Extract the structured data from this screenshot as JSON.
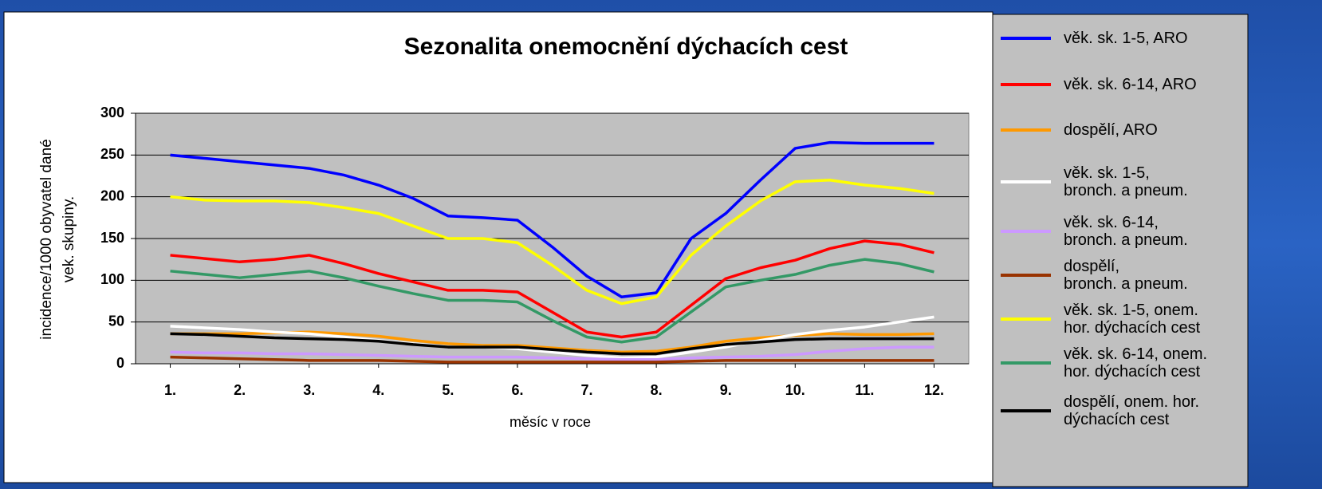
{
  "chart_data": {
    "type": "line",
    "title": "Sezonalita onemocnění dýchacích cest",
    "x_label": "měsíc v roce",
    "y_label": "incidence/1000 obyvatel dané\nvek. skupiny.",
    "x": [
      1,
      1.5,
      2,
      2.5,
      3,
      3.5,
      4,
      4.5,
      5,
      5.5,
      6,
      6.5,
      7,
      7.5,
      8,
      8.5,
      9,
      9.5,
      10,
      10.5,
      11,
      11.5,
      12
    ],
    "xlim": [
      0.5,
      12.5
    ],
    "xticks": [
      {
        "value": 1,
        "label": "1."
      },
      {
        "value": 2,
        "label": "2."
      },
      {
        "value": 3,
        "label": "3."
      },
      {
        "value": 4,
        "label": "4."
      },
      {
        "value": 5,
        "label": "5."
      },
      {
        "value": 6,
        "label": "6."
      },
      {
        "value": 7,
        "label": "7."
      },
      {
        "value": 8,
        "label": "8."
      },
      {
        "value": 9,
        "label": "9."
      },
      {
        "value": 10,
        "label": "10."
      },
      {
        "value": 11,
        "label": "11."
      },
      {
        "value": 12,
        "label": "12."
      }
    ],
    "ylim": [
      0,
      300
    ],
    "yticks": [
      0,
      50,
      100,
      150,
      200,
      250,
      300
    ],
    "grid": true,
    "legend": "right",
    "series": [
      {
        "name": "věk. sk. 1-5, ARO",
        "color": "#0000ff",
        "values": [
          250,
          246,
          242,
          238,
          234,
          226,
          214,
          198,
          177,
          175,
          172,
          140,
          105,
          80,
          85,
          150,
          180,
          220,
          258,
          265,
          264,
          264,
          264
        ]
      },
      {
        "name": "věk. sk. 6-14, ARO",
        "color": "#ff0000",
        "values": [
          130,
          126,
          122,
          125,
          130,
          120,
          108,
          98,
          88,
          88,
          86,
          62,
          38,
          32,
          38,
          70,
          102,
          115,
          124,
          138,
          147,
          143,
          133
        ]
      },
      {
        "name": "dospělí, ARO",
        "color": "#ff9900",
        "values": [
          36,
          36,
          36,
          37,
          38,
          36,
          33,
          28,
          24,
          22,
          22,
          19,
          16,
          14,
          15,
          20,
          27,
          31,
          34,
          36,
          35,
          35,
          36
        ]
      },
      {
        "name": "věk. sk. 1-5,\nbronch. a pneum.",
        "color": "#ffffff",
        "values": [
          45,
          43,
          41,
          38,
          36,
          32,
          28,
          24,
          20,
          20,
          18,
          14,
          10,
          7,
          8,
          14,
          20,
          28,
          35,
          40,
          44,
          50,
          56
        ]
      },
      {
        "name": "věk. sk. 6-14,\nbronch. a pneum.",
        "color": "#cc99ff",
        "values": [
          14,
          13,
          13,
          12,
          12,
          11,
          10,
          9,
          8,
          8,
          8,
          7,
          6,
          5,
          5,
          7,
          8,
          9,
          11,
          15,
          18,
          20,
          20
        ]
      },
      {
        "name": "dospělí,\nbronch. a pneum.",
        "color": "#993300",
        "values": [
          8,
          7,
          6,
          5,
          4,
          4,
          4,
          3,
          2,
          2,
          2,
          2,
          2,
          2,
          2,
          3,
          4,
          4,
          4,
          4,
          4,
          4,
          4
        ]
      },
      {
        "name": "věk. sk. 1-5,  onem.\nhor. dýchacích cest",
        "color": "#ffff00",
        "values": [
          200,
          196,
          195,
          195,
          193,
          187,
          180,
          165,
          150,
          150,
          145,
          118,
          88,
          72,
          80,
          130,
          165,
          195,
          218,
          220,
          214,
          210,
          204
        ]
      },
      {
        "name": "věk. sk. 6-14, onem.\nhor. dýchacích cest",
        "color": "#339966",
        "values": [
          111,
          107,
          103,
          107,
          111,
          103,
          93,
          84,
          76,
          76,
          74,
          52,
          32,
          26,
          32,
          62,
          92,
          100,
          107,
          118,
          125,
          120,
          110
        ]
      },
      {
        "name": "dospělí, onem. hor.\ndýchacích cest",
        "color": "#000000",
        "values": [
          36,
          35,
          33,
          31,
          30,
          29,
          27,
          23,
          20,
          20,
          20,
          17,
          14,
          12,
          12,
          18,
          23,
          26,
          29,
          30,
          30,
          30,
          30
        ]
      }
    ]
  }
}
